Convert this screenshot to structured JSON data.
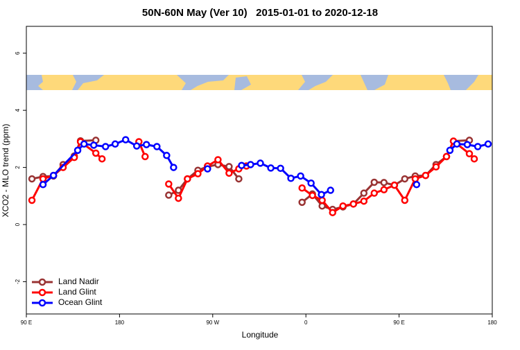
{
  "chart_data": {
    "type": "line",
    "title": "50N-60N May (Ver 10)   2015-01-01 to 2020-12-18",
    "x_label": "Longitude",
    "y_label": "XCO2 - MLO trend (ppm)",
    "xlim": [
      90,
      540
    ],
    "ylim": [
      -3.13,
      6.94
    ],
    "xticks": [
      {
        "value": 90,
        "label": "90 E"
      },
      180,
      {
        "value": 270,
        "label": "90 W"
      },
      {
        "value": 360,
        "label": "0"
      },
      {
        "value": 450,
        "label": "90 E"
      },
      {
        "value": 540,
        "label": "180"
      }
    ],
    "yticks": [
      -2,
      0,
      2,
      4,
      6
    ],
    "legend": "bottom-left",
    "series": [
      {
        "name": "Land Nadir",
        "color": "#993333",
        "x": [
          95.4,
          106.1,
          116.2,
          125.5,
          136.3,
          142.3,
          157.1,
          null,
          227.5,
          236.9,
          245.6,
          255.7,
          265,
          275.1,
          285.8,
          295.2,
          null,
          356.3,
          366.3,
          375.7,
          385.8,
          395.8,
          405.9,
          416,
          426,
          435.4,
          445.5,
          455.5,
          465.6,
          475.6,
          485.7,
          495.8,
          502.5,
          517.9
        ],
        "values": [
          1.6,
          1.68,
          1.7,
          2.1,
          2.4,
          2.93,
          2.95,
          null,
          1.03,
          1.2,
          1.6,
          1.9,
          2.03,
          2.1,
          2.03,
          1.6,
          null,
          0.78,
          1.07,
          0.65,
          0.53,
          0.62,
          0.72,
          1.1,
          1.48,
          1.47,
          1.38,
          1.6,
          1.7,
          1.72,
          2.1,
          2.38,
          2.92,
          2.95
        ]
      },
      {
        "name": "Land Glint",
        "color": "#ff0000",
        "x": [
          95.4,
          106.1,
          116.2,
          125.5,
          136.3,
          142.3,
          157.1,
          163.1,
          null,
          198.7,
          204.7,
          null,
          227.5,
          236.9,
          245.6,
          255.7,
          265,
          275.1,
          285.8,
          295.2,
          302.6,
          null,
          356.3,
          366.3,
          375.7,
          385.8,
          395.8,
          405.9,
          416,
          426,
          435.4,
          445.5,
          455.5,
          465.6,
          475.6,
          485.7,
          495.8,
          502.5,
          517.9,
          522.6
        ],
        "values": [
          0.85,
          1.6,
          1.72,
          2.0,
          2.35,
          2.9,
          2.5,
          2.3,
          null,
          2.9,
          2.38,
          null,
          1.42,
          0.92,
          1.6,
          1.78,
          2.05,
          2.27,
          1.8,
          1.95,
          2.05,
          null,
          1.28,
          1.02,
          0.85,
          0.42,
          0.65,
          0.72,
          0.82,
          1.1,
          1.22,
          1.38,
          0.85,
          1.6,
          1.72,
          2.02,
          2.38,
          2.92,
          2.48,
          2.3
        ]
      },
      {
        "name": "Ocean Glint",
        "color": "#0000ff",
        "x": [
          106.1,
          116.2,
          139.6,
          145.7,
          155.1,
          166.5,
          175.8,
          185.9,
          196.6,
          206,
          216.1,
          225.5,
          232.2,
          null,
          265,
          null,
          297.9,
          306.6,
          316,
          326.1,
          335.5,
          345.5,
          354.9,
          365,
          375,
          383.8,
          null,
          466.9,
          null,
          499.1,
          505.8,
          515.9,
          526,
          536
        ],
        "values": [
          1.4,
          1.72,
          2.6,
          2.82,
          2.78,
          2.73,
          2.82,
          2.97,
          2.75,
          2.8,
          2.73,
          2.42,
          2.0,
          null,
          1.95,
          null,
          2.07,
          2.1,
          2.15,
          1.98,
          1.97,
          1.62,
          1.7,
          1.45,
          1.05,
          1.2,
          null,
          1.4,
          null,
          2.6,
          2.82,
          2.8,
          2.73,
          2.82
        ]
      }
    ]
  }
}
